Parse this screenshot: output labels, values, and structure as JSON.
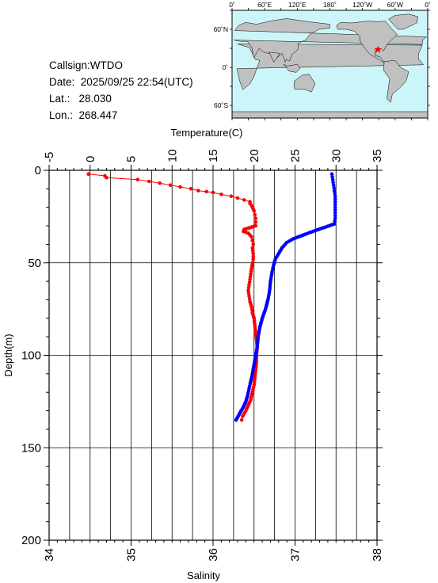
{
  "header": {
    "callsign": "Callsign:WTDO",
    "date_label": "Date:",
    "date_value": "2025/09/25 22:54(UTC)",
    "lat_label": "Lat.:",
    "lat_value": "28.030",
    "lon_label": "Lon.:",
    "lon_value": "268.447"
  },
  "map": {
    "top_labels": [
      "0˚",
      "60˚E",
      "120˚E",
      "180˚",
      "120˚W",
      "60˚W",
      "0˚"
    ],
    "top_label_lons": [
      0,
      60,
      120,
      180,
      240,
      300,
      360
    ],
    "left_labels": [
      "60˚N",
      "0˚",
      "60˚S"
    ],
    "left_label_lats": [
      60,
      0,
      -60
    ],
    "lat_range": [
      -80,
      90
    ],
    "lon_range": [
      0,
      360
    ],
    "marker_lat": 28.03,
    "marker_lon": 268.447,
    "ocean_color": "#ccf5fa",
    "land_color": "#c0c0c0",
    "marker_color": "#ff0000"
  },
  "chart_data": {
    "type": "line",
    "ylabel": "Depth(m)",
    "top_xlabel": "Temperature(C)",
    "bottom_xlabel": "Salinity",
    "ylim": [
      0,
      200
    ],
    "yticks": [
      0,
      50,
      100,
      150,
      200
    ],
    "temperature_lim": [
      -5,
      35
    ],
    "temperature_ticks": [
      -5,
      0,
      5,
      10,
      15,
      20,
      25,
      30,
      35
    ],
    "salinity_lim": [
      34,
      38
    ],
    "salinity_ticks": [
      34,
      35,
      36,
      37,
      38
    ],
    "grid": true,
    "series": [
      {
        "key": "temperature",
        "axis": "top",
        "color": "#ff0000",
        "marker": "dot",
        "points": [
          [
            -0.2,
            2
          ],
          [
            1.8,
            3
          ],
          [
            2.0,
            4
          ],
          [
            5.8,
            5
          ],
          [
            7.2,
            6
          ],
          [
            8.5,
            7
          ],
          [
            9.8,
            8
          ],
          [
            11.0,
            9
          ],
          [
            12.3,
            10
          ],
          [
            13.2,
            11
          ],
          [
            14.2,
            11.5
          ],
          [
            15.0,
            12
          ],
          [
            16.0,
            13
          ],
          [
            17.2,
            14
          ],
          [
            18.0,
            15
          ],
          [
            18.8,
            16
          ],
          [
            19.5,
            17
          ],
          [
            19.5,
            18
          ],
          [
            19.7,
            19
          ],
          [
            19.8,
            20
          ],
          [
            20.0,
            22
          ],
          [
            20.1,
            24
          ],
          [
            20.2,
            26
          ],
          [
            20.2,
            28
          ],
          [
            20.2,
            30
          ],
          [
            19.5,
            31
          ],
          [
            18.8,
            32
          ],
          [
            18.7,
            33
          ],
          [
            19.3,
            34
          ],
          [
            19.7,
            36
          ],
          [
            19.8,
            38
          ],
          [
            19.9,
            40
          ],
          [
            19.8,
            42
          ],
          [
            19.9,
            45
          ],
          [
            19.9,
            48
          ],
          [
            19.8,
            50
          ],
          [
            19.7,
            53
          ],
          [
            19.6,
            56
          ],
          [
            19.5,
            59
          ],
          [
            19.4,
            62
          ],
          [
            19.3,
            65
          ],
          [
            19.4,
            68
          ],
          [
            19.5,
            71
          ],
          [
            19.7,
            74
          ],
          [
            19.8,
            77
          ],
          [
            20.0,
            80
          ],
          [
            20.1,
            84
          ],
          [
            20.2,
            88
          ],
          [
            20.3,
            92
          ],
          [
            20.4,
            96
          ],
          [
            20.3,
            100
          ],
          [
            20.3,
            104
          ],
          [
            20.2,
            108
          ],
          [
            20.1,
            112
          ],
          [
            20.0,
            116
          ],
          [
            19.8,
            120
          ],
          [
            19.6,
            124
          ],
          [
            19.3,
            127
          ],
          [
            19.0,
            130
          ],
          [
            18.6,
            133
          ],
          [
            18.5,
            135
          ]
        ]
      },
      {
        "key": "salinity",
        "axis": "bottom",
        "color": "#0000ff",
        "marker": "dot",
        "points": [
          [
            37.45,
            2
          ],
          [
            37.46,
            5
          ],
          [
            37.47,
            8
          ],
          [
            37.48,
            11
          ],
          [
            37.49,
            14
          ],
          [
            37.49,
            17
          ],
          [
            37.49,
            20
          ],
          [
            37.49,
            23
          ],
          [
            37.49,
            26
          ],
          [
            37.48,
            29
          ],
          [
            37.35,
            31
          ],
          [
            37.22,
            33
          ],
          [
            37.1,
            35
          ],
          [
            36.98,
            37
          ],
          [
            36.9,
            39
          ],
          [
            36.84,
            42
          ],
          [
            36.8,
            45
          ],
          [
            36.76,
            48
          ],
          [
            36.74,
            51
          ],
          [
            36.72,
            55
          ],
          [
            36.7,
            60
          ],
          [
            36.69,
            65
          ],
          [
            36.67,
            70
          ],
          [
            36.64,
            75
          ],
          [
            36.6,
            80
          ],
          [
            36.57,
            85
          ],
          [
            36.55,
            90
          ],
          [
            36.54,
            95
          ],
          [
            36.52,
            100
          ],
          [
            36.5,
            105
          ],
          [
            36.48,
            110
          ],
          [
            36.46,
            114
          ],
          [
            36.44,
            118
          ],
          [
            36.42,
            122
          ],
          [
            36.4,
            125
          ],
          [
            36.37,
            128
          ],
          [
            36.33,
            131
          ],
          [
            36.28,
            135
          ]
        ]
      }
    ]
  }
}
